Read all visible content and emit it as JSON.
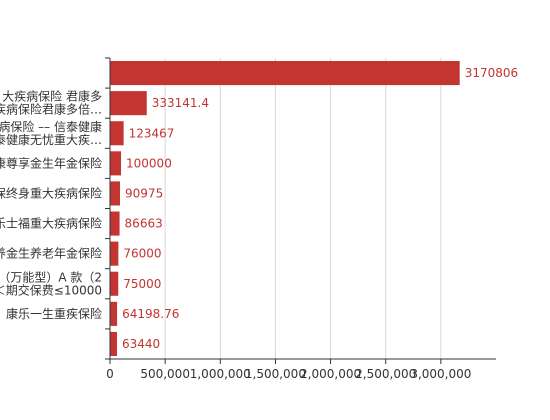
{
  "chart_data": {
    "type": "bar",
    "orientation": "horizontal",
    "categories": [
      "",
      "大疾病保险 君康多\n疾病保险君康多倍…",
      "病保险 –– 信泰健康\n泰健康无忧重大疾…",
      "康尊享金生年金保险",
      "保终身重大疾病保险",
      "乐士福重大疾病保险",
      "养金生养老年金保险",
      "（万能型）A 款（2\n＜期交保费≤10000",
      "康乐一生重疾保险",
      ""
    ],
    "values": [
      3170806,
      333141.4,
      123467,
      100000,
      90975,
      86663,
      76000,
      75000,
      64198.76,
      63440
    ],
    "value_labels": [
      "3170806",
      "333141.4",
      "123467",
      "100000",
      "90975",
      "86663",
      "76000",
      "75000",
      "64198.76",
      "63440"
    ],
    "x_ticks": [
      0,
      500000,
      1000000,
      1500000,
      2000000,
      2500000,
      3000000
    ],
    "x_tick_labels": [
      "0",
      "500,000",
      "1,000,000",
      "1,500,000",
      "2,000,000",
      "2,500,000",
      "3,000,000"
    ],
    "xlim": [
      0,
      3500000
    ],
    "grid": true,
    "title": "",
    "xlabel": "",
    "ylabel": "",
    "colors": {
      "bar": "#c23531",
      "label": "#c23531",
      "grid": "#d8d8d8",
      "axis": "#333333"
    }
  }
}
